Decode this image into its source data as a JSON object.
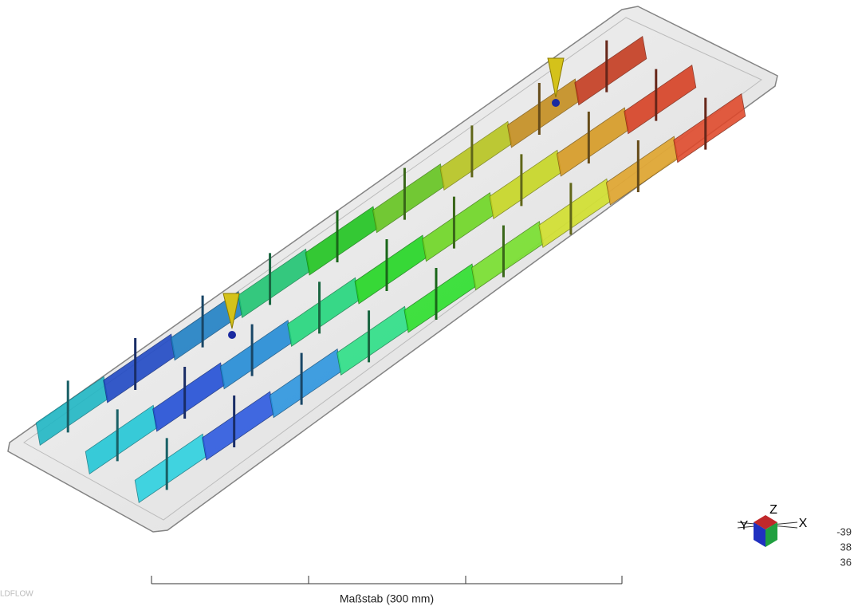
{
  "triad": {
    "y": "Y",
    "z": "Z",
    "x": "X"
  },
  "legend": {
    "values": [
      "-39",
      "38",
      "36"
    ]
  },
  "scale_bar": {
    "label": "Maßstab (300 mm)"
  },
  "watermark": "LDFLOW"
}
